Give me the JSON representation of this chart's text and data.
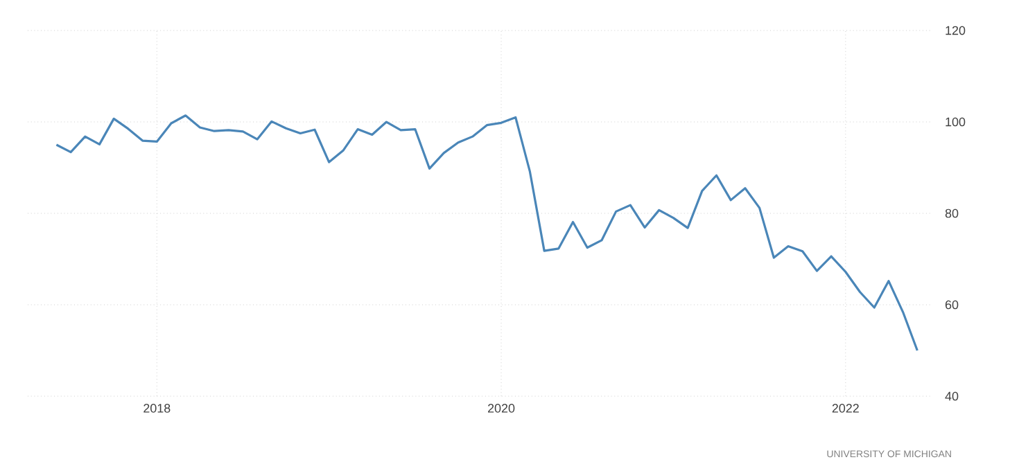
{
  "chart_data": {
    "type": "line",
    "x": [
      "2017-06",
      "2017-07",
      "2017-08",
      "2017-09",
      "2017-10",
      "2017-11",
      "2017-12",
      "2018-01",
      "2018-02",
      "2018-03",
      "2018-04",
      "2018-05",
      "2018-06",
      "2018-07",
      "2018-08",
      "2018-09",
      "2018-10",
      "2018-11",
      "2018-12",
      "2019-01",
      "2019-02",
      "2019-03",
      "2019-04",
      "2019-05",
      "2019-06",
      "2019-07",
      "2019-08",
      "2019-09",
      "2019-10",
      "2019-11",
      "2019-12",
      "2020-01",
      "2020-02",
      "2020-03",
      "2020-04",
      "2020-05",
      "2020-06",
      "2020-07",
      "2020-08",
      "2020-09",
      "2020-10",
      "2020-11",
      "2020-12",
      "2021-01",
      "2021-02",
      "2021-03",
      "2021-04",
      "2021-05",
      "2021-06",
      "2021-07",
      "2021-08",
      "2021-09",
      "2021-10",
      "2021-11",
      "2021-12",
      "2022-01",
      "2022-02",
      "2022-03",
      "2022-04",
      "2022-05",
      "2022-06"
    ],
    "values": [
      95.0,
      93.4,
      96.8,
      95.1,
      100.7,
      98.5,
      95.9,
      95.7,
      99.7,
      101.4,
      98.8,
      98.0,
      98.2,
      97.9,
      96.2,
      100.1,
      98.6,
      97.5,
      98.3,
      91.2,
      93.8,
      98.4,
      97.2,
      100.0,
      98.2,
      98.4,
      89.8,
      93.2,
      95.5,
      96.8,
      99.3,
      99.8,
      101.0,
      89.1,
      71.8,
      72.3,
      78.1,
      72.5,
      74.1,
      80.4,
      81.8,
      76.9,
      80.7,
      79.0,
      76.8,
      84.9,
      88.3,
      82.9,
      85.5,
      81.2,
      70.3,
      72.8,
      71.7,
      67.4,
      70.6,
      67.2,
      62.8,
      59.4,
      65.2,
      58.4,
      50.0
    ],
    "color": "#4a86b8",
    "xlim": [
      "2017-04",
      "2022-07"
    ],
    "xticks": [
      "2018",
      "2020",
      "2022"
    ],
    "ylim": [
      40,
      120
    ],
    "yticks": [
      40,
      60,
      80,
      100,
      120
    ],
    "grid": true,
    "annotations": [
      "UNIVERSITY OF MICHIGAN"
    ]
  }
}
